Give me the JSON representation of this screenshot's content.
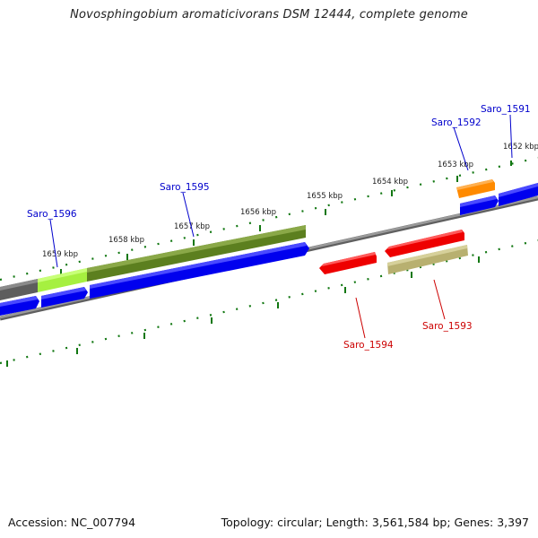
{
  "title": "Novosphingobium aromaticivorans DSM 12444, complete genome",
  "accession": "Accession: NC_007794",
  "topology": "Topology: circular; Length: 3,561,584 bp; Genes: 3,397",
  "kbp_labels": [
    "1652 kbp",
    "1653 kbp",
    "1654 kbp",
    "1655 kbp",
    "1656 kbp",
    "1657 kbp",
    "1658 kbp",
    "1659 kbp"
  ],
  "genes": {
    "saro_1591": "Saro_1591",
    "saro_1592": "Saro_1592",
    "saro_1593": "Saro_1593",
    "saro_1594": "Saro_1594",
    "saro_1595": "Saro_1595",
    "saro_1596": "Saro_1596"
  },
  "colors": {
    "forward_label": "#0000cc",
    "reverse_label": "#cc0000",
    "blue_gene": "#0000ee",
    "red_gene": "#ee0000",
    "olive_gene": "#5c7f1f",
    "lime_gene": "#a6f040",
    "khaki_gene": "#b8b070",
    "orange_gene": "#ff8a00",
    "dark_gene": "#666666",
    "tick": "#117711",
    "backbone": "#888888"
  }
}
